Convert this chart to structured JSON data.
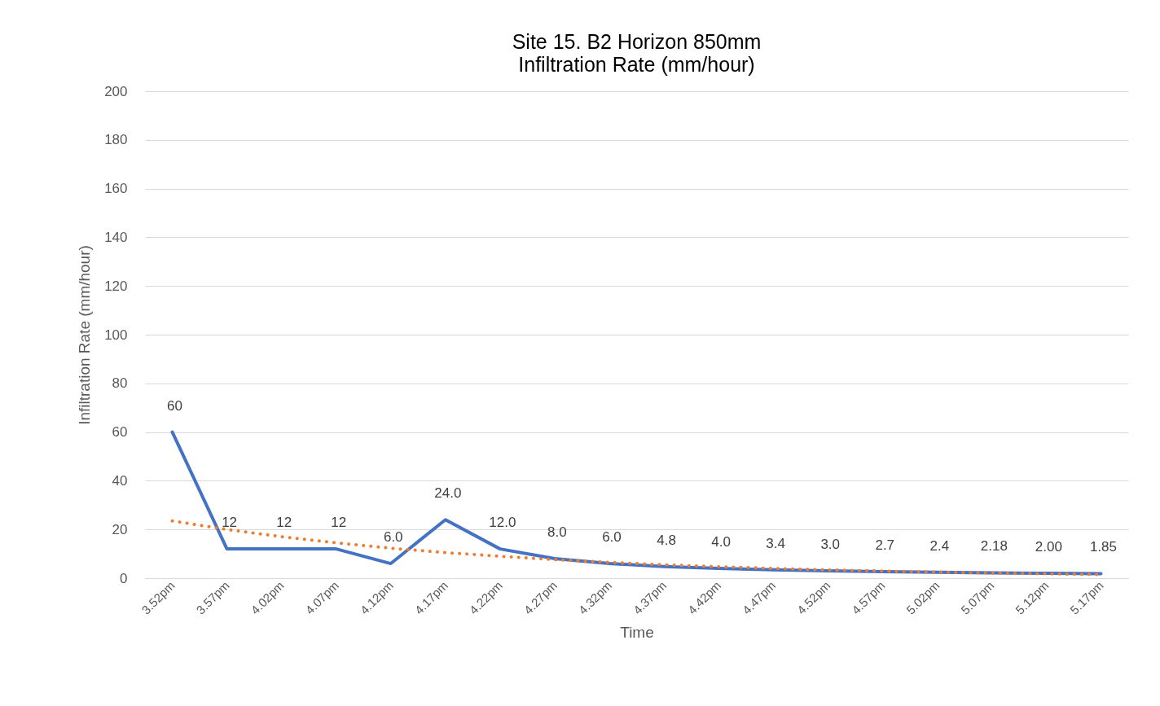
{
  "chart_data": {
    "type": "line",
    "title": "Site 15. B2 Horizon  850mm",
    "subtitle": "Infiltration Rate (mm/hour)",
    "xlabel": "Time",
    "ylabel": "Infiltration Rate (mm/hour)",
    "categories": [
      "3.52pm",
      "3.57pm",
      "4.02pm",
      "4.07pm",
      "4.12pm",
      "4.17pm",
      "4.22pm",
      "4.27pm",
      "4.32pm",
      "4.37pm",
      "4.42pm",
      "4.47pm",
      "4.52pm",
      "4.57pm",
      "5.02pm",
      "5.07pm",
      "5.12pm",
      "5.17pm"
    ],
    "series": [
      {
        "type": "line",
        "color": "#4472c4",
        "line_style": "solid",
        "values": [
          60,
          12,
          12,
          12,
          6,
          24,
          12,
          8,
          6,
          4.8,
          4,
          3.4,
          3,
          2.7,
          2.4,
          2.18,
          2,
          1.85
        ],
        "value_labels": [
          "60",
          "12",
          "12",
          "12",
          "6.0",
          "24.0",
          "12.0",
          "8.0",
          "6.0",
          "4.8",
          "4.0",
          "3.4",
          "3.0",
          "2.7",
          "2.4",
          "2.18",
          "2.00",
          "1.85"
        ]
      },
      {
        "type": "line",
        "color": "#ed7d31",
        "line_style": "dotted",
        "values": [
          23.5,
          20,
          17,
          14.5,
          12.3,
          10.5,
          9,
          7.6,
          6.5,
          5.5,
          4.7,
          4,
          3.4,
          2.9,
          2.5,
          2.1,
          1.8,
          1.5
        ]
      }
    ],
    "ylim": [
      0,
      200
    ],
    "yticks": [
      0,
      20,
      40,
      60,
      80,
      100,
      120,
      140,
      160,
      180,
      200
    ],
    "grid": "y",
    "marker": "none"
  }
}
